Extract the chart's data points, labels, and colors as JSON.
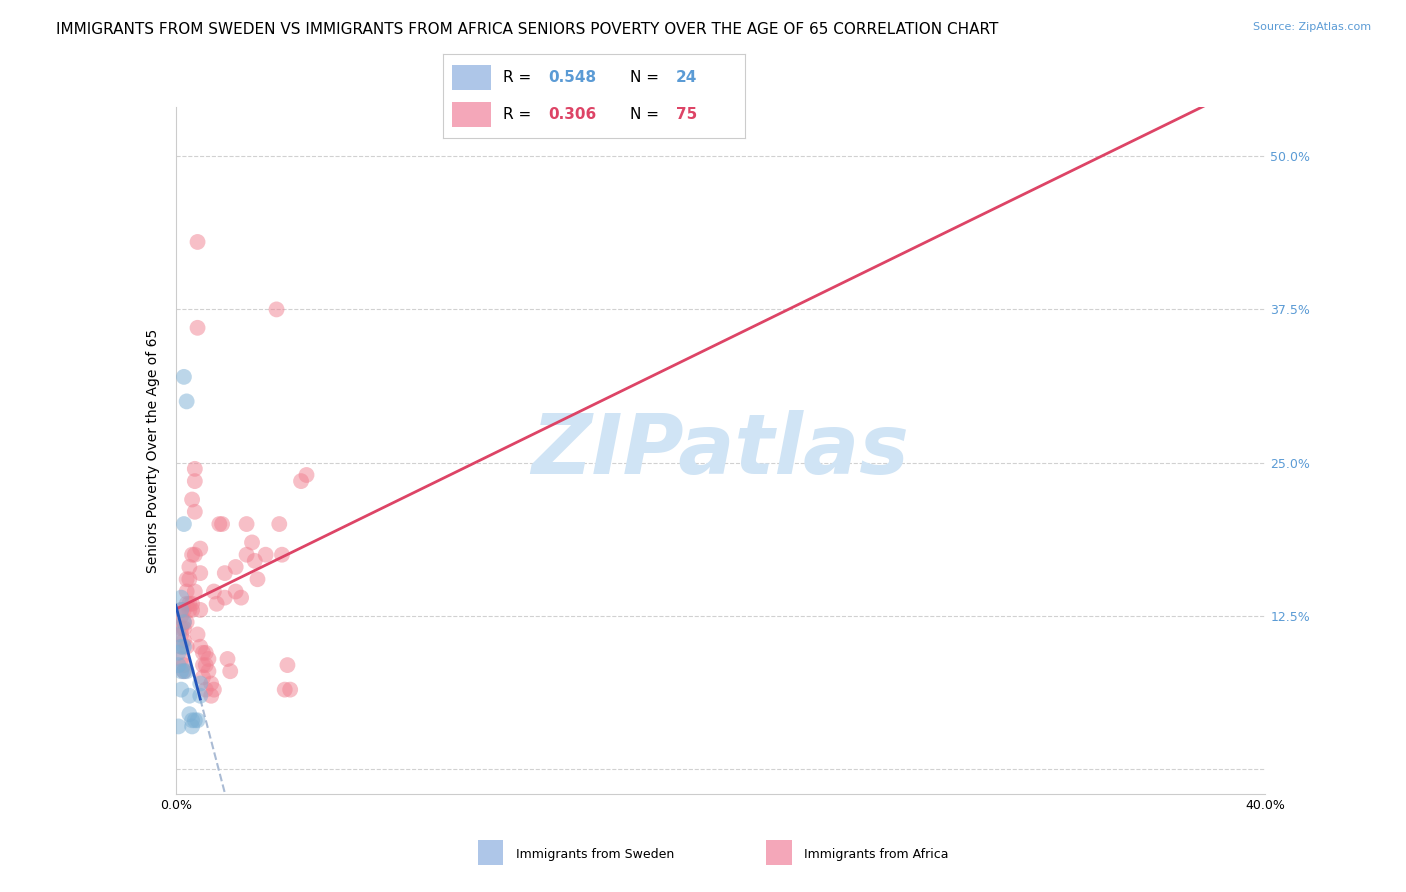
{
  "title": "IMMIGRANTS FROM SWEDEN VS IMMIGRANTS FROM AFRICA SENIORS POVERTY OVER THE AGE OF 65 CORRELATION CHART",
  "source": "Source: ZipAtlas.com",
  "ylabel": "Seniors Poverty Over the Age of 65",
  "xlim": [
    0.0,
    0.4
  ],
  "ylim": [
    -0.02,
    0.54
  ],
  "yticks": [
    0.0,
    0.125,
    0.25,
    0.375,
    0.5
  ],
  "ytick_labels_right": [
    "",
    "12.5%",
    "25.0%",
    "37.5%",
    "50.0%"
  ],
  "xticks": [
    0.0,
    0.05,
    0.1,
    0.15,
    0.2,
    0.25,
    0.3,
    0.35,
    0.4
  ],
  "xtick_labels": [
    "0.0%",
    "",
    "",
    "",
    "",
    "",
    "",
    "",
    "40.0%"
  ],
  "sweden_color": "#7bafd4",
  "africa_color": "#f08090",
  "sweden_fill_color": "#aec6e8",
  "africa_fill_color": "#f4a7b9",
  "sweden_trendline_color": "#2255bb",
  "africa_trendline_color": "#dd4466",
  "sweden_dash_color": "#aabbd4",
  "tick_color_right": "#5b9bd5",
  "legend_R_color": "#5b9bd5",
  "legend_R2_color": "#dd4466",
  "background_color": "#ffffff",
  "grid_color": "#cccccc",
  "title_fontsize": 11,
  "axis_label_fontsize": 10,
  "tick_fontsize": 9,
  "watermark": "ZIPatlas",
  "watermark_color": "#d0e4f5",
  "watermark_fontsize": 60,
  "sweden_scatter": [
    [
      0.001,
      0.11
    ],
    [
      0.001,
      0.095
    ],
    [
      0.001,
      0.085
    ],
    [
      0.002,
      0.14
    ],
    [
      0.002,
      0.13
    ],
    [
      0.002,
      0.1
    ],
    [
      0.002,
      0.08
    ],
    [
      0.002,
      0.065
    ],
    [
      0.003,
      0.32
    ],
    [
      0.003,
      0.2
    ],
    [
      0.003,
      0.12
    ],
    [
      0.003,
      0.1
    ],
    [
      0.003,
      0.08
    ],
    [
      0.004,
      0.3
    ],
    [
      0.004,
      0.08
    ],
    [
      0.005,
      0.06
    ],
    [
      0.005,
      0.045
    ],
    [
      0.006,
      0.04
    ],
    [
      0.006,
      0.035
    ],
    [
      0.007,
      0.04
    ],
    [
      0.008,
      0.04
    ],
    [
      0.009,
      0.07
    ],
    [
      0.009,
      0.06
    ],
    [
      0.001,
      0.035
    ]
  ],
  "africa_scatter": [
    [
      0.002,
      0.125
    ],
    [
      0.002,
      0.13
    ],
    [
      0.002,
      0.115
    ],
    [
      0.002,
      0.11
    ],
    [
      0.002,
      0.1
    ],
    [
      0.002,
      0.09
    ],
    [
      0.003,
      0.13
    ],
    [
      0.003,
      0.12
    ],
    [
      0.003,
      0.115
    ],
    [
      0.003,
      0.105
    ],
    [
      0.003,
      0.085
    ],
    [
      0.004,
      0.155
    ],
    [
      0.004,
      0.145
    ],
    [
      0.004,
      0.135
    ],
    [
      0.004,
      0.12
    ],
    [
      0.004,
      0.1
    ],
    [
      0.005,
      0.165
    ],
    [
      0.005,
      0.155
    ],
    [
      0.005,
      0.135
    ],
    [
      0.005,
      0.13
    ],
    [
      0.006,
      0.22
    ],
    [
      0.006,
      0.175
    ],
    [
      0.006,
      0.135
    ],
    [
      0.006,
      0.13
    ],
    [
      0.007,
      0.245
    ],
    [
      0.007,
      0.235
    ],
    [
      0.007,
      0.21
    ],
    [
      0.007,
      0.175
    ],
    [
      0.008,
      0.43
    ],
    [
      0.008,
      0.36
    ],
    [
      0.008,
      0.11
    ],
    [
      0.009,
      0.18
    ],
    [
      0.009,
      0.16
    ],
    [
      0.009,
      0.13
    ],
    [
      0.009,
      0.1
    ],
    [
      0.01,
      0.095
    ],
    [
      0.01,
      0.085
    ],
    [
      0.01,
      0.075
    ],
    [
      0.011,
      0.095
    ],
    [
      0.011,
      0.085
    ],
    [
      0.011,
      0.065
    ],
    [
      0.012,
      0.09
    ],
    [
      0.012,
      0.08
    ],
    [
      0.013,
      0.07
    ],
    [
      0.013,
      0.06
    ],
    [
      0.014,
      0.065
    ],
    [
      0.016,
      0.2
    ],
    [
      0.017,
      0.2
    ],
    [
      0.018,
      0.16
    ],
    [
      0.018,
      0.14
    ],
    [
      0.019,
      0.09
    ],
    [
      0.02,
      0.08
    ],
    [
      0.022,
      0.165
    ],
    [
      0.024,
      0.14
    ],
    [
      0.026,
      0.175
    ],
    [
      0.026,
      0.2
    ],
    [
      0.028,
      0.185
    ],
    [
      0.029,
      0.17
    ],
    [
      0.03,
      0.155
    ],
    [
      0.033,
      0.175
    ],
    [
      0.037,
      0.375
    ],
    [
      0.038,
      0.2
    ],
    [
      0.039,
      0.175
    ],
    [
      0.04,
      0.065
    ],
    [
      0.041,
      0.085
    ],
    [
      0.042,
      0.065
    ],
    [
      0.046,
      0.235
    ],
    [
      0.048,
      0.24
    ],
    [
      0.007,
      0.145
    ],
    [
      0.003,
      0.08
    ],
    [
      0.014,
      0.145
    ],
    [
      0.015,
      0.135
    ],
    [
      0.022,
      0.145
    ]
  ]
}
